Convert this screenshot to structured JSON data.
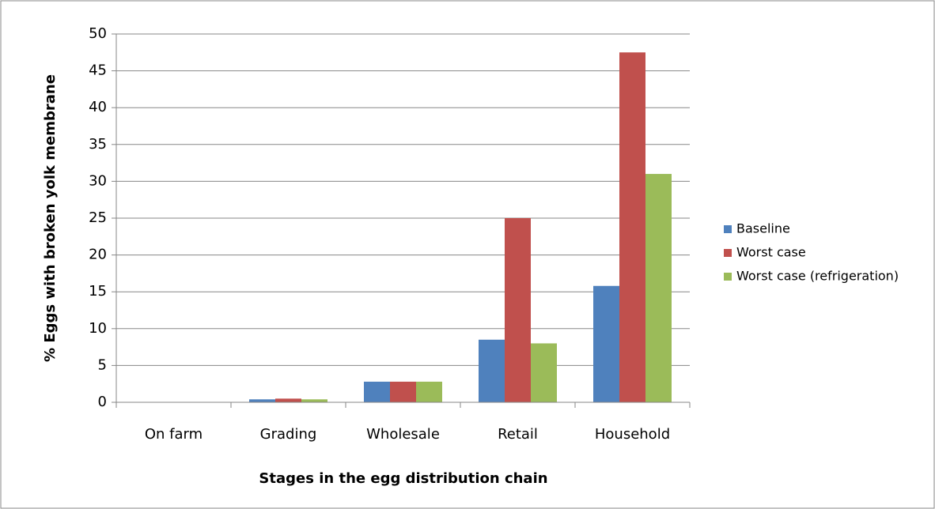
{
  "chart_data": {
    "type": "bar",
    "categories": [
      "On farm",
      "Grading",
      "Wholesale",
      "Retail",
      "Household"
    ],
    "series": [
      {
        "name": "Baseline",
        "color": "#4f81bd",
        "values": [
          0,
          0.4,
          2.8,
          8.5,
          15.8
        ]
      },
      {
        "name": "Worst case",
        "color": "#c0504d",
        "values": [
          0,
          0.5,
          2.8,
          25,
          47.5
        ]
      },
      {
        "name": "Worst case (refrigeration)",
        "color": "#9bbb59",
        "values": [
          0,
          0.4,
          2.8,
          8,
          31
        ]
      }
    ],
    "x_label": "Stages in the egg distribution chain",
    "y_label": "% Eggs with broken yolk membrane",
    "ylim": [
      0,
      50
    ],
    "yticks": [
      0,
      5,
      10,
      15,
      20,
      25,
      30,
      35,
      40,
      45,
      50
    ],
    "grid": true,
    "legend": "right"
  }
}
